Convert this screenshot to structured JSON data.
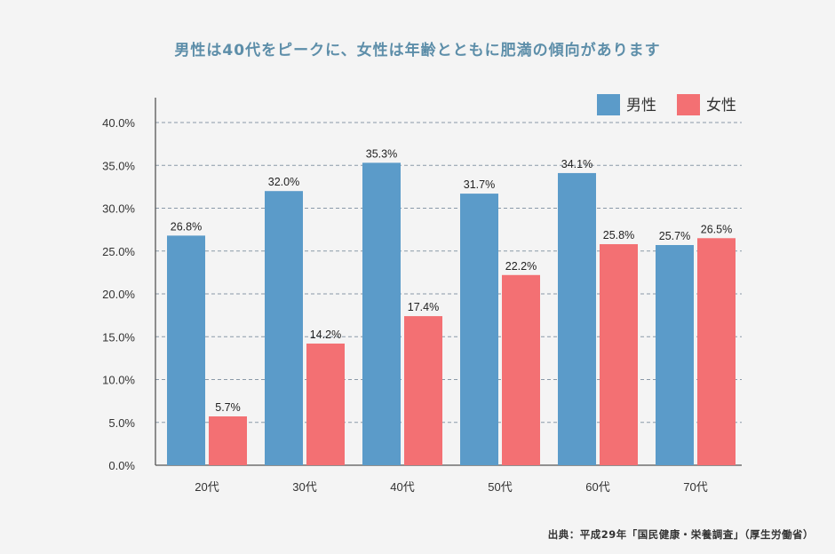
{
  "colors": {
    "male": "#5b9bc9",
    "female": "#f37073",
    "title": "#5d8ea9",
    "source": "#333333",
    "grid": "#8a99a8",
    "axis": "#555555"
  },
  "title": "男性は40代をピークに、女性は年齢とともに肥満の傾向があります",
  "source": "出典：平成29年「国民健康・栄養調査」（厚生労働省）",
  "chart_data": {
    "type": "bar",
    "categories": [
      "20代",
      "30代",
      "40代",
      "50代",
      "60代",
      "70代"
    ],
    "series": [
      {
        "name": "男性",
        "values": [
          26.8,
          32.0,
          35.3,
          31.7,
          34.1,
          25.7
        ],
        "labels": [
          "26.8%",
          "32.0%",
          "35.3%",
          "31.7%",
          "34.1%",
          "25.7%"
        ]
      },
      {
        "name": "女性",
        "values": [
          5.7,
          14.2,
          17.4,
          22.2,
          25.8,
          26.5
        ],
        "labels": [
          "5.7%",
          "14.2%",
          "17.4%",
          "22.2%",
          "25.8%",
          "26.5%"
        ]
      }
    ],
    "ylim": [
      0,
      40
    ],
    "yticks": [
      "0.0%",
      "5.0%",
      "10.0%",
      "15.0%",
      "20.0%",
      "25.0%",
      "30.0%",
      "35.0%",
      "40.0%"
    ],
    "grid": true,
    "legend": "top-right"
  }
}
